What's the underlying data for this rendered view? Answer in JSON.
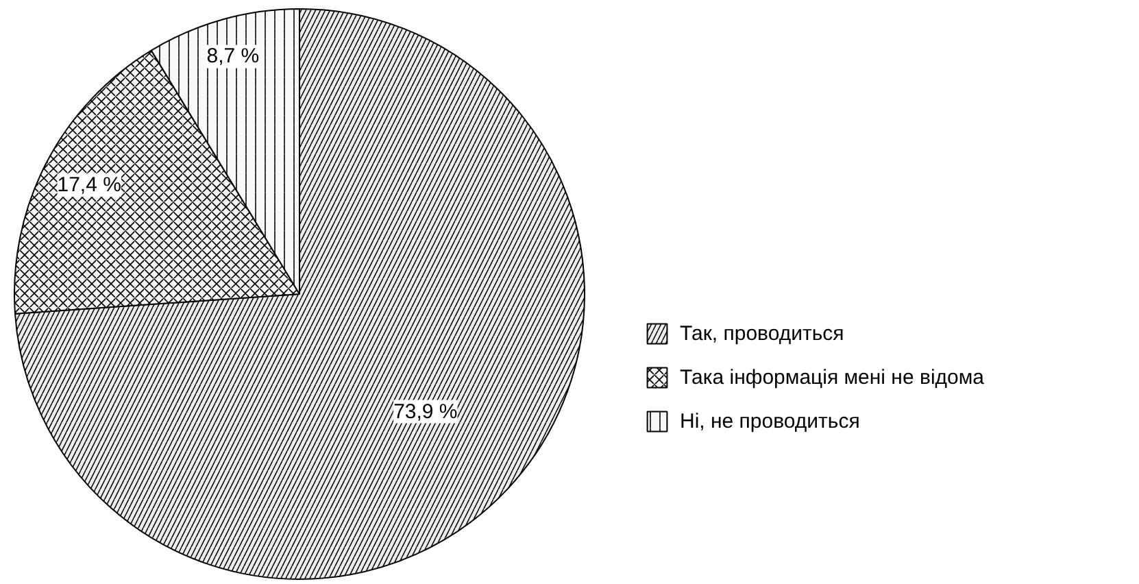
{
  "chart_data": {
    "type": "pie",
    "categories": [
      "Так, проводиться",
      "Така інформація мені не відома",
      "Ні, не проводиться"
    ],
    "values": [
      73.9,
      17.4,
      8.7
    ],
    "value_labels": [
      "73,9 %",
      "17,4 %",
      "8,7 %"
    ],
    "colors": [
      "#ececec",
      "#f4f4f4",
      "#f8f8f8"
    ],
    "legend": "right"
  }
}
